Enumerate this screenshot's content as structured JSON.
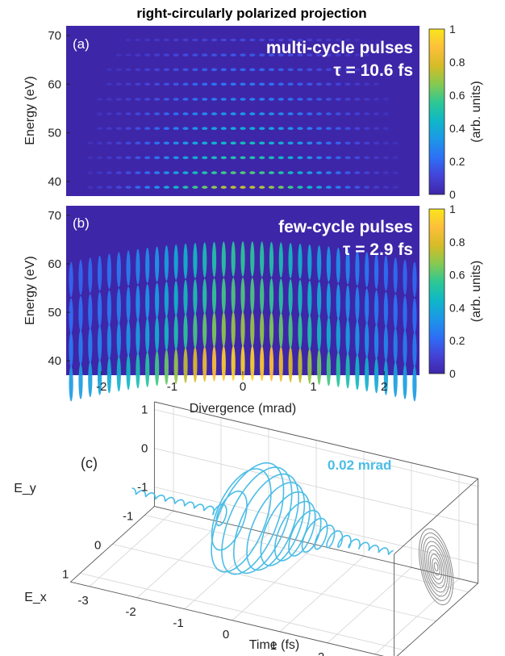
{
  "figure_title": "right-circularly polarized projection",
  "colors": {
    "trace": "#4bbde6",
    "projection": "#8a8a8a",
    "colormap": [
      "#3e26a8",
      "#4443d8",
      "#2d70f5",
      "#1d97e8",
      "#0fb7c8",
      "#2dc895",
      "#86c950",
      "#d6bc27",
      "#fdbf3a",
      "#f9e61c"
    ]
  },
  "chart_data": [
    {
      "type": "heatmap",
      "panel": "(a)",
      "annotation": "multi-cycle pulses",
      "tau_label": "τ = 10.6 fs",
      "ylabel": "Energy (eV)",
      "xlim": [
        -2.5,
        2.5
      ],
      "ylim": [
        37,
        72
      ],
      "yticks": [
        "40",
        "50",
        "60",
        "70"
      ],
      "xticks": [],
      "clim": [
        0,
        1
      ],
      "colorbar_label": "(arb. units)",
      "colorbar_ticks": [
        "0",
        "0.2",
        "0.4",
        "0.6",
        "0.8",
        "1"
      ],
      "harmonic_energies_eV": [
        38.8,
        41.8,
        44.9,
        47.9,
        50.9,
        53.9,
        56.9,
        60.0,
        63.0,
        66.0,
        69.1
      ],
      "harmonic_peak_intensity": [
        0.75,
        0.6,
        0.52,
        0.47,
        0.4,
        0.33,
        0.28,
        0.24,
        0.2,
        0.16,
        0.12
      ],
      "fringe_spacing_mrad": 0.135
    },
    {
      "type": "heatmap",
      "panel": "(b)",
      "annotation": "few-cycle pulses",
      "tau_label": "τ = 2.9 fs",
      "ylabel": "Energy (eV)",
      "xlabel": "Divergence (mrad)",
      "xlim": [
        -2.5,
        2.5
      ],
      "ylim": [
        37,
        72
      ],
      "yticks": [
        "40",
        "50",
        "60",
        "70"
      ],
      "xticks": [
        "-2",
        "-1",
        "0",
        "1",
        "2"
      ],
      "clim": [
        0,
        1
      ],
      "colorbar_label": "(arb. units)",
      "colorbar_ticks": [
        "0",
        "0.2",
        "0.4",
        "0.6",
        "0.8",
        "1"
      ],
      "band_centers_eV": [
        39.5,
        46.5,
        53.5,
        61.0
      ],
      "band_peak_intensity": [
        0.95,
        0.7,
        0.6,
        0.55
      ],
      "fringe_spacing_mrad": 0.135
    },
    {
      "type": "line",
      "panel": "(c)",
      "series_label": "0.02 mrad",
      "xlabel": "Time (fs)",
      "ylabel_ex": "E_x",
      "ylabel_ey": "E_y",
      "xlim": [
        -3.4,
        3.4
      ],
      "ex_range": [
        -1.3,
        1.3
      ],
      "ey_range": [
        -1.5,
        1.2
      ],
      "xticks": [
        "-3",
        "-2",
        "-1",
        "0",
        "1",
        "2",
        "3"
      ],
      "ex_ticks": [
        "1",
        "0",
        "-1"
      ],
      "ey_ticks": [
        "1",
        "0",
        "-1"
      ],
      "pulse_center_fs": -0.6,
      "rise_time_fs": 0.25,
      "decay_time_fs": 0.9,
      "peak_amplitude": 1.0,
      "cycles_per_fs": 4.9
    }
  ]
}
